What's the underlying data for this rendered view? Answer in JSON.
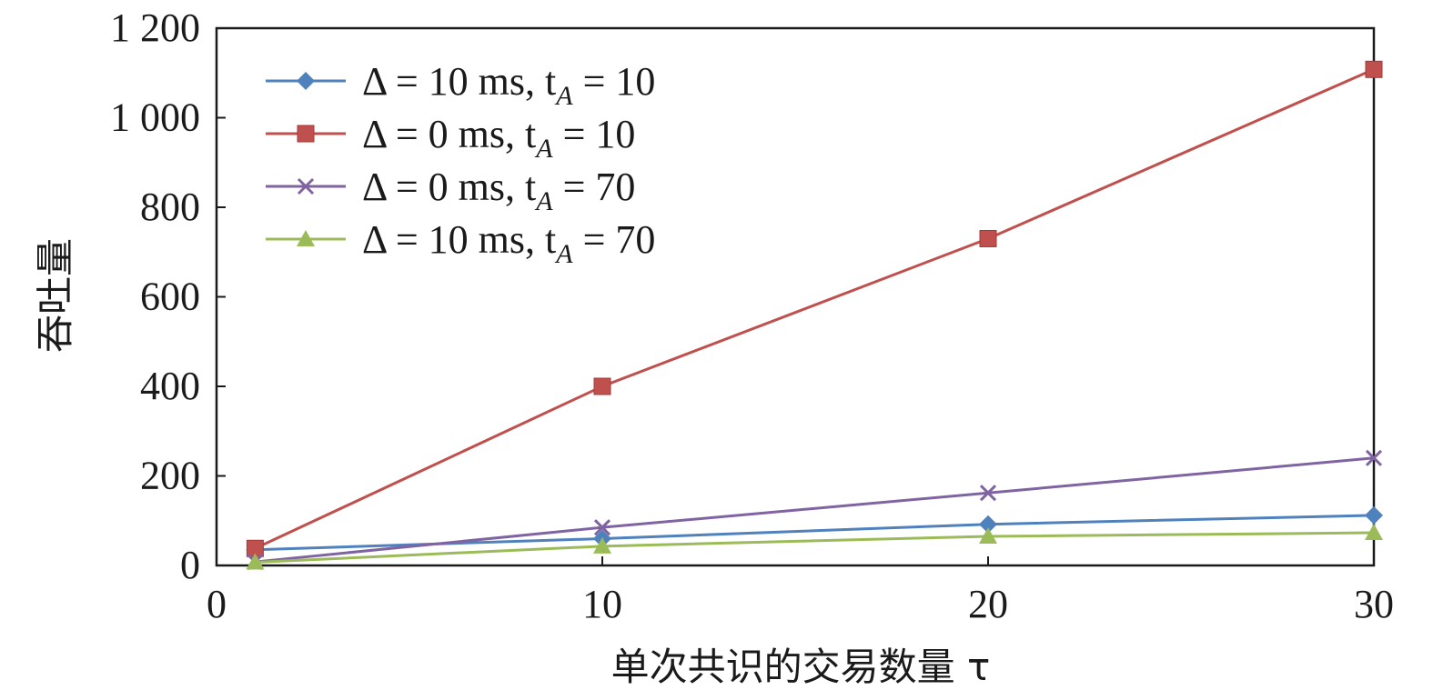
{
  "chart_data": {
    "type": "line",
    "xlabel": "单次共识的交易数量 τ",
    "ylabel": "吞吐量",
    "xlim": [
      0,
      30
    ],
    "ylim": [
      0,
      1200
    ],
    "x_ticks": [
      {
        "value": 0,
        "label": "0"
      },
      {
        "value": 10,
        "label": "10"
      },
      {
        "value": 20,
        "label": "20"
      },
      {
        "value": 30,
        "label": "30"
      }
    ],
    "y_ticks": [
      {
        "value": 0,
        "label": "0"
      },
      {
        "value": 200,
        "label": "200"
      },
      {
        "value": 400,
        "label": "400"
      },
      {
        "value": 600,
        "label": "600"
      },
      {
        "value": 800,
        "label": "800"
      },
      {
        "value": 1000,
        "label": "1 000"
      },
      {
        "value": 1200,
        "label": "1 200"
      }
    ],
    "grid": false,
    "legend_position": "top-left",
    "x": [
      1,
      10,
      20,
      30
    ],
    "series": [
      {
        "legend_main": "Δ = 10 ms, t",
        "legend_sub": "A",
        "legend_tail": " = 10",
        "color": "#4f81bd",
        "marker": "diamond",
        "values": [
          35,
          60,
          92,
          112
        ]
      },
      {
        "legend_main": "Δ = 0 ms, t",
        "legend_sub": "A",
        "legend_tail": " = 10",
        "color": "#c0504d",
        "marker": "square",
        "values": [
          38,
          400,
          730,
          1108
        ]
      },
      {
        "legend_main": "Δ = 0 ms, t",
        "legend_sub": "A",
        "legend_tail": " = 70",
        "color": "#8064a2",
        "marker": "x",
        "values": [
          8,
          85,
          162,
          240
        ]
      },
      {
        "legend_main": "Δ = 10 ms, t",
        "legend_sub": "A",
        "legend_tail": " = 70",
        "color": "#9bbb59",
        "marker": "triangle",
        "values": [
          7,
          43,
          65,
          73
        ]
      }
    ]
  }
}
